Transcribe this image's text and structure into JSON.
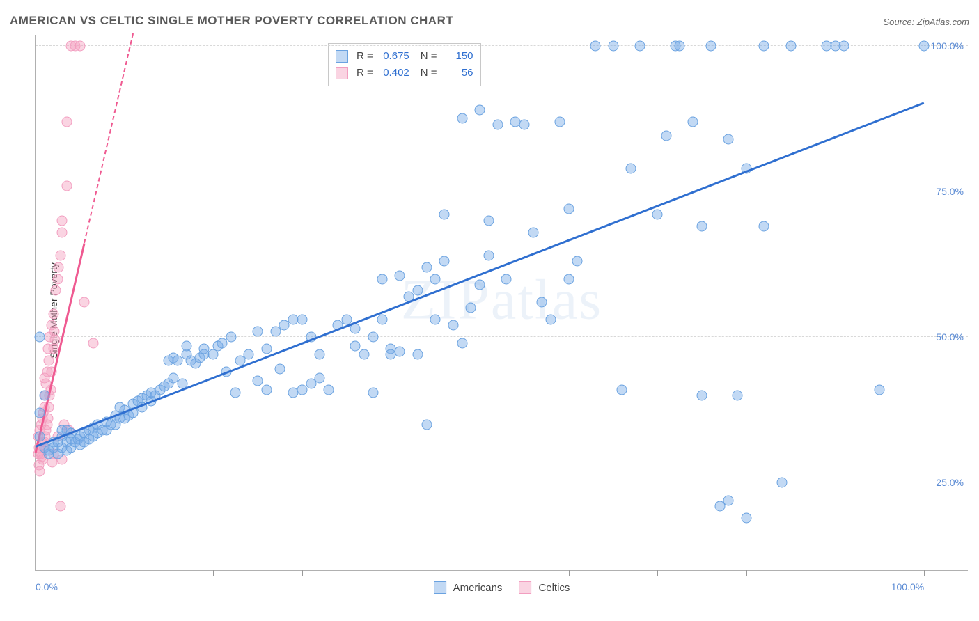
{
  "title": "AMERICAN VS CELTIC SINGLE MOTHER POVERTY CORRELATION CHART",
  "source_label": "Source: ZipAtlas.com",
  "watermark": "ZIPatlas",
  "ylabel": "Single Mother Poverty",
  "axis": {
    "xmin": 0,
    "xmax": 105,
    "ymin": 10,
    "ymax": 102,
    "x_ticks": [
      0,
      10,
      20,
      30,
      40,
      50,
      60,
      70,
      80,
      90,
      100
    ],
    "x_tick_labels": {
      "0": "0.0%",
      "100": "100.0%"
    },
    "y_gridlines": [
      25,
      50,
      75,
      100
    ],
    "y_tick_labels": {
      "25": "25.0%",
      "50": "50.0%",
      "75": "75.0%",
      "100": "100.0%"
    },
    "tick_label_color": "#5b8bd4",
    "grid_color": "#d8d8d8"
  },
  "series": {
    "americans": {
      "label": "Americans",
      "marker_fill": "rgba(120,170,230,0.45)",
      "marker_stroke": "#6aa2e0",
      "trend_color": "#2f6fd0",
      "trend_solid": {
        "x1": 0,
        "y1": 31,
        "x2": 100,
        "y2": 90
      },
      "trend_dash": null,
      "R": "0.675",
      "N": "150",
      "points": [
        [
          0.5,
          33
        ],
        [
          0.5,
          37
        ],
        [
          0.5,
          50
        ],
        [
          1,
          31
        ],
        [
          1,
          40
        ],
        [
          1.5,
          30
        ],
        [
          1.5,
          30.5
        ],
        [
          2,
          31
        ],
        [
          2,
          32
        ],
        [
          2.5,
          30
        ],
        [
          2.5,
          32
        ],
        [
          3,
          31
        ],
        [
          3,
          33
        ],
        [
          3,
          34
        ],
        [
          3.5,
          30.5
        ],
        [
          3.5,
          32
        ],
        [
          3.5,
          34
        ],
        [
          4,
          31
        ],
        [
          4,
          32.5
        ],
        [
          4,
          33.5
        ],
        [
          4.5,
          32
        ],
        [
          4.8,
          32.5
        ],
        [
          5,
          31.5
        ],
        [
          5,
          33
        ],
        [
          5.5,
          32
        ],
        [
          5.5,
          33.5
        ],
        [
          6,
          32.5
        ],
        [
          6,
          34
        ],
        [
          6.5,
          33
        ],
        [
          6.5,
          34.5
        ],
        [
          7,
          33.5
        ],
        [
          7,
          35
        ],
        [
          7.5,
          34
        ],
        [
          8,
          34
        ],
        [
          8,
          35.5
        ],
        [
          8.5,
          35
        ],
        [
          9,
          35
        ],
        [
          9,
          36.5
        ],
        [
          9.5,
          36
        ],
        [
          9.5,
          38
        ],
        [
          10,
          36
        ],
        [
          10,
          37.5
        ],
        [
          10.5,
          36.5
        ],
        [
          11,
          37
        ],
        [
          11,
          38.5
        ],
        [
          11.5,
          39
        ],
        [
          12,
          38
        ],
        [
          12,
          39.5
        ],
        [
          12.5,
          40
        ],
        [
          13,
          39
        ],
        [
          13,
          40.5
        ],
        [
          13.5,
          40
        ],
        [
          14,
          41
        ],
        [
          14.5,
          41.5
        ],
        [
          15,
          42
        ],
        [
          15,
          46
        ],
        [
          15.5,
          43
        ],
        [
          15.5,
          46.5
        ],
        [
          16,
          46
        ],
        [
          16.5,
          42
        ],
        [
          17,
          47
        ],
        [
          17,
          48.5
        ],
        [
          17.5,
          46
        ],
        [
          18,
          45.5
        ],
        [
          18.5,
          46.5
        ],
        [
          19,
          47
        ],
        [
          19,
          48
        ],
        [
          20,
          47
        ],
        [
          20.5,
          48.5
        ],
        [
          21,
          49
        ],
        [
          21.5,
          44
        ],
        [
          22,
          50
        ],
        [
          22.5,
          40.5
        ],
        [
          23,
          46
        ],
        [
          24,
          47
        ],
        [
          25,
          42.5
        ],
        [
          25,
          51
        ],
        [
          26,
          41
        ],
        [
          26,
          48
        ],
        [
          27,
          51
        ],
        [
          27.5,
          44.5
        ],
        [
          28,
          52
        ],
        [
          29,
          40.5
        ],
        [
          29,
          53
        ],
        [
          30,
          53
        ],
        [
          30,
          41
        ],
        [
          31,
          50
        ],
        [
          31,
          42
        ],
        [
          32,
          47
        ],
        [
          32,
          43
        ],
        [
          33,
          41
        ],
        [
          34,
          52
        ],
        [
          35,
          53
        ],
        [
          36,
          51.5
        ],
        [
          36,
          48.5
        ],
        [
          37,
          47
        ],
        [
          38,
          40.5
        ],
        [
          38,
          50
        ],
        [
          39,
          53
        ],
        [
          39,
          60
        ],
        [
          40,
          48
        ],
        [
          40,
          47
        ],
        [
          41,
          47.5
        ],
        [
          41,
          60.5
        ],
        [
          42,
          57
        ],
        [
          43,
          58
        ],
        [
          43,
          47
        ],
        [
          44,
          35
        ],
        [
          44,
          62
        ],
        [
          45,
          53
        ],
        [
          45,
          60
        ],
        [
          46,
          71
        ],
        [
          46,
          63
        ],
        [
          47,
          52
        ],
        [
          48,
          87.5
        ],
        [
          48,
          49
        ],
        [
          49,
          55
        ],
        [
          50,
          89
        ],
        [
          50,
          59
        ],
        [
          51,
          70
        ],
        [
          51,
          64
        ],
        [
          52,
          86.5
        ],
        [
          53,
          60
        ],
        [
          54,
          87
        ],
        [
          55,
          86.5
        ],
        [
          56,
          68
        ],
        [
          57,
          56
        ],
        [
          58,
          53
        ],
        [
          59,
          87
        ],
        [
          60,
          60
        ],
        [
          60,
          72
        ],
        [
          61,
          63
        ],
        [
          63,
          100
        ],
        [
          65,
          100
        ],
        [
          66,
          41
        ],
        [
          67,
          79
        ],
        [
          68,
          100
        ],
        [
          70,
          71
        ],
        [
          71,
          84.5
        ],
        [
          72,
          100
        ],
        [
          72.5,
          100
        ],
        [
          74,
          87
        ],
        [
          75,
          40
        ],
        [
          75,
          69
        ],
        [
          76,
          100
        ],
        [
          77,
          21
        ],
        [
          78,
          84
        ],
        [
          78,
          22
        ],
        [
          79,
          40
        ],
        [
          80,
          19
        ],
        [
          80,
          79
        ],
        [
          82,
          100
        ],
        [
          82,
          69
        ],
        [
          84,
          25
        ],
        [
          85,
          100
        ],
        [
          89,
          100
        ],
        [
          90,
          100
        ],
        [
          91,
          100
        ],
        [
          95,
          41
        ],
        [
          100,
          100
        ]
      ]
    },
    "celtics": {
      "label": "Celtics",
      "marker_fill": "rgba(245,160,190,0.45)",
      "marker_stroke": "#f29ec0",
      "trend_color": "#ef5a91",
      "trend_solid": {
        "x1": 0,
        "y1": 30,
        "x2": 5.5,
        "y2": 66
      },
      "trend_dash": {
        "x1": 5.5,
        "y1": 66,
        "x2": 11,
        "y2": 102
      },
      "R": "0.402",
      "N": "56",
      "points": [
        [
          0.3,
          30
        ],
        [
          0.3,
          33
        ],
        [
          0.4,
          28
        ],
        [
          0.4,
          31
        ],
        [
          0.5,
          27
        ],
        [
          0.5,
          34
        ],
        [
          0.6,
          30
        ],
        [
          0.6,
          35
        ],
        [
          0.7,
          29.5
        ],
        [
          0.7,
          32
        ],
        [
          0.8,
          29
        ],
        [
          0.8,
          36
        ],
        [
          0.9,
          31
        ],
        [
          0.9,
          37
        ],
        [
          1.0,
          32
        ],
        [
          1.0,
          38
        ],
        [
          1.0,
          43
        ],
        [
          1.1,
          33
        ],
        [
          1.1,
          40
        ],
        [
          1.2,
          34
        ],
        [
          1.2,
          42
        ],
        [
          1.3,
          35
        ],
        [
          1.3,
          44
        ],
        [
          1.4,
          36
        ],
        [
          1.4,
          48
        ],
        [
          1.5,
          38
        ],
        [
          1.5,
          46
        ],
        [
          1.6,
          40
        ],
        [
          1.6,
          50
        ],
        [
          1.7,
          41
        ],
        [
          1.8,
          44
        ],
        [
          1.8,
          52
        ],
        [
          1.9,
          28.5
        ],
        [
          2.0,
          30
        ],
        [
          2.0,
          48
        ],
        [
          2.0,
          54
        ],
        [
          2.1,
          51
        ],
        [
          2.2,
          49.5
        ],
        [
          2.3,
          58
        ],
        [
          2.5,
          60
        ],
        [
          2.5,
          33
        ],
        [
          2.6,
          62
        ],
        [
          2.8,
          21
        ],
        [
          2.8,
          64
        ],
        [
          3.0,
          29
        ],
        [
          3.0,
          68
        ],
        [
          3.0,
          70
        ],
        [
          3.2,
          35
        ],
        [
          3.5,
          76
        ],
        [
          3.5,
          87
        ],
        [
          3.8,
          34
        ],
        [
          4.0,
          100
        ],
        [
          4.5,
          100
        ],
        [
          5.0,
          100
        ],
        [
          5.5,
          56
        ],
        [
          6.5,
          49
        ]
      ]
    }
  },
  "stats_box": {
    "text_color": "#444",
    "value_color": "#2f6fd0"
  }
}
